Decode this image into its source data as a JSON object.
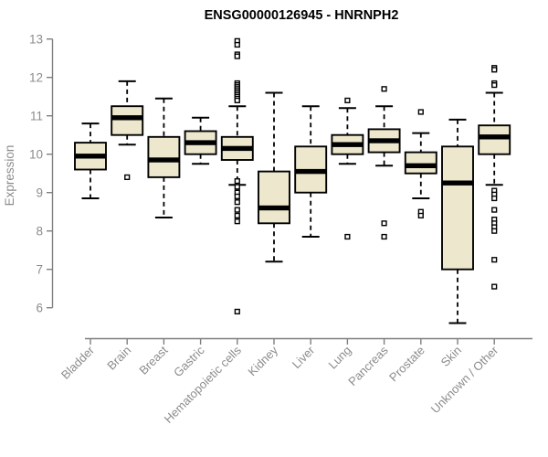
{
  "chart_data": {
    "type": "boxplot",
    "title": "ENSG00000126945 - HNRNPH2",
    "ylabel": "Expression",
    "xlabel": "",
    "ylim": [
      6,
      13
    ],
    "yticks": [
      6,
      7,
      8,
      9,
      10,
      11,
      12,
      13
    ],
    "grid": false,
    "legend": "none",
    "colors": {
      "box_fill": "#EDE8CD",
      "box_stroke": "#000000",
      "median_color": "#000000",
      "whisker_color": "#000000",
      "outlier_stroke": "#000000",
      "outlier_fill": "#ffffff",
      "axis_color": "#7f7f7f",
      "label_color": "#8c8c8c",
      "title_color": "#000000"
    },
    "categories": [
      "Bladder",
      "Brain",
      "Breast",
      "Gastric",
      "Hematopoietic cells",
      "Kidney",
      "Liver",
      "Lung",
      "Pancreas",
      "Prostate",
      "Skin",
      "Unknown / Other"
    ],
    "series": [
      {
        "name": "Bladder",
        "whisker_low": 8.85,
        "q1": 9.6,
        "median": 9.95,
        "q3": 10.3,
        "whisker_high": 10.8,
        "outliers": []
      },
      {
        "name": "Brain",
        "whisker_low": 10.25,
        "q1": 10.5,
        "median": 10.95,
        "q3": 11.25,
        "whisker_high": 11.9,
        "outliers": [
          9.4
        ]
      },
      {
        "name": "Breast",
        "whisker_low": 8.35,
        "q1": 9.4,
        "median": 9.85,
        "q3": 10.45,
        "whisker_high": 11.45,
        "outliers": []
      },
      {
        "name": "Gastric",
        "whisker_low": 9.75,
        "q1": 10.0,
        "median": 10.3,
        "q3": 10.6,
        "whisker_high": 10.95,
        "outliers": []
      },
      {
        "name": "Hematopoietic cells",
        "whisker_low": 9.2,
        "q1": 9.85,
        "median": 10.15,
        "q3": 10.45,
        "whisker_high": 11.25,
        "outliers": [
          12.95,
          12.85,
          12.6,
          12.55,
          11.85,
          11.8,
          11.75,
          11.7,
          11.65,
          11.6,
          11.55,
          11.5,
          11.45,
          11.4,
          9.3,
          9.15,
          9.0,
          8.9,
          8.75,
          8.55,
          8.4,
          8.25,
          5.9
        ]
      },
      {
        "name": "Kidney",
        "whisker_low": 7.2,
        "q1": 8.2,
        "median": 8.6,
        "q3": 9.55,
        "whisker_high": 11.6,
        "outliers": []
      },
      {
        "name": "Liver",
        "whisker_low": 7.85,
        "q1": 9.0,
        "median": 9.55,
        "q3": 10.2,
        "whisker_high": 11.25,
        "outliers": []
      },
      {
        "name": "Lung",
        "whisker_low": 9.75,
        "q1": 10.0,
        "median": 10.25,
        "q3": 10.5,
        "whisker_high": 11.2,
        "outliers": [
          11.4,
          7.85
        ]
      },
      {
        "name": "Pancreas",
        "whisker_low": 9.7,
        "q1": 10.05,
        "median": 10.35,
        "q3": 10.65,
        "whisker_high": 11.25,
        "outliers": [
          11.7,
          8.2,
          7.85
        ]
      },
      {
        "name": "Prostate",
        "whisker_low": 8.85,
        "q1": 9.5,
        "median": 9.7,
        "q3": 10.05,
        "whisker_high": 10.55,
        "outliers": [
          11.1,
          8.5,
          8.4
        ]
      },
      {
        "name": "Skin",
        "whisker_low": 5.6,
        "q1": 7.0,
        "median": 9.25,
        "q3": 10.2,
        "whisker_high": 10.9,
        "outliers": []
      },
      {
        "name": "Unknown / Other",
        "whisker_low": 9.2,
        "q1": 10.0,
        "median": 10.45,
        "q3": 10.75,
        "whisker_high": 11.6,
        "outliers": [
          12.25,
          12.2,
          11.85,
          11.8,
          9.05,
          8.95,
          8.85,
          8.55,
          8.3,
          8.2,
          8.1,
          8.0,
          7.25,
          6.55
        ]
      }
    ]
  }
}
